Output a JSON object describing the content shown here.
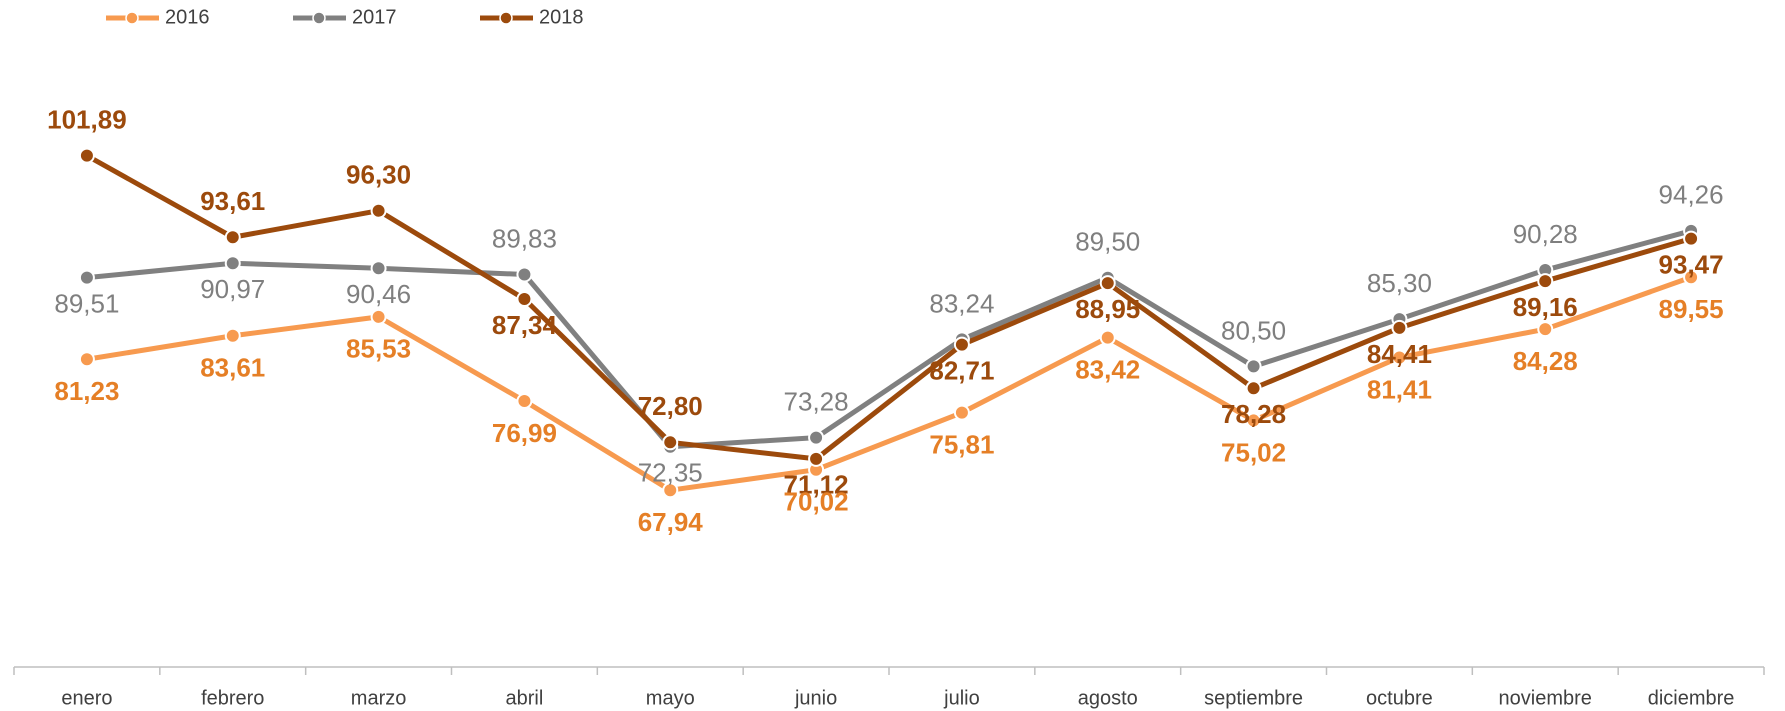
{
  "chart_data": {
    "type": "line",
    "categories": [
      "enero",
      "febrero",
      "marzo",
      "abril",
      "mayo",
      "junio",
      "julio",
      "agosto",
      "septiembre",
      "octubre",
      "noviembre",
      "diciembre"
    ],
    "series": [
      {
        "name": "2016",
        "color": "#f79a4f",
        "label_color": "#e57f26",
        "values": [
          81.23,
          83.61,
          85.53,
          76.99,
          67.94,
          70.02,
          75.81,
          83.42,
          75.02,
          81.41,
          84.28,
          89.55
        ],
        "value_labels": [
          "81,23",
          "83,61",
          "85,53",
          "76,99",
          "67,94",
          "70,02",
          "75,81",
          "83,42",
          "75,02",
          "81,41",
          "84,28",
          "89,55"
        ]
      },
      {
        "name": "2017",
        "color": "#808080",
        "label_color": "#7f7f7f",
        "values": [
          89.51,
          90.97,
          90.46,
          89.83,
          72.35,
          73.28,
          83.24,
          89.5,
          80.5,
          85.3,
          90.28,
          94.26
        ],
        "value_labels": [
          "89,51",
          "90,97",
          "90,46",
          "89,83",
          "72,35",
          "73,28",
          "83,24",
          "89,50",
          "80,50",
          "85,30",
          "90,28",
          "94,26"
        ]
      },
      {
        "name": "2018",
        "color": "#9c4a0c",
        "label_color": "#9c4a0c",
        "values": [
          101.89,
          93.61,
          96.3,
          87.34,
          72.8,
          71.12,
          82.71,
          88.95,
          78.28,
          84.41,
          89.16,
          93.47
        ],
        "value_labels": [
          "101,89",
          "93,61",
          "96,30",
          "87,34",
          "72,80",
          "71,12",
          "82,71",
          "88,95",
          "78,28",
          "84,41",
          "89,16",
          "93,47"
        ]
      }
    ],
    "ylim": [
      50,
      112
    ],
    "legend": "top-left"
  }
}
